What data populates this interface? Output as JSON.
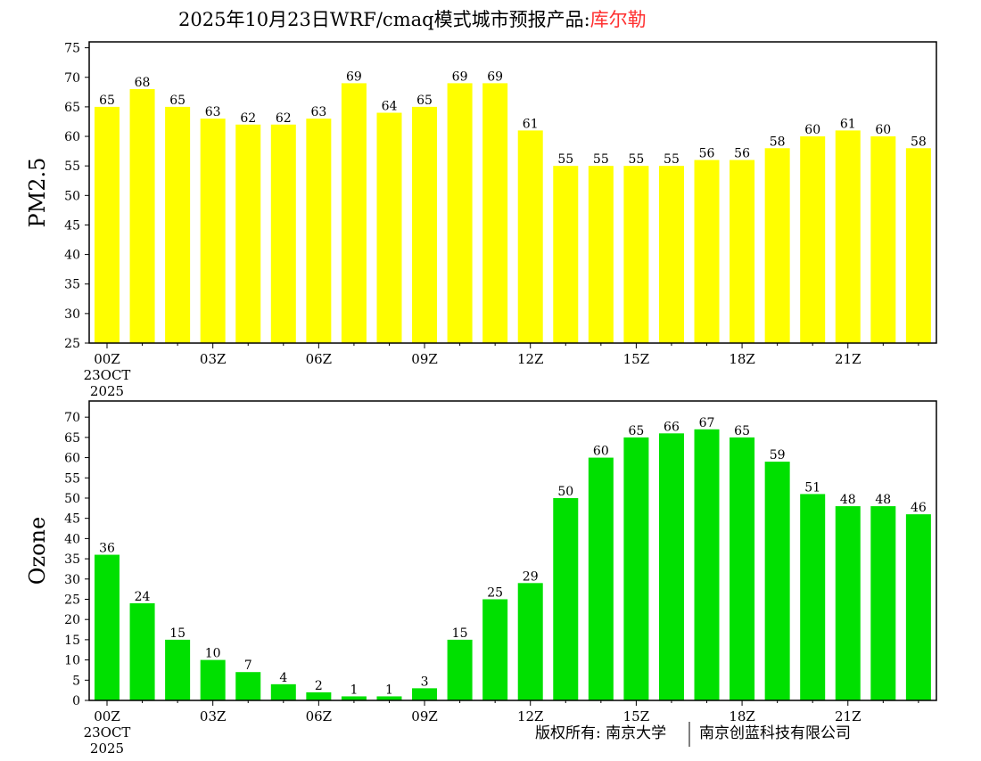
{
  "title": {
    "main": "2025年10月23日WRF/cmaq模式城市预报产品:",
    "city": "库尔勒"
  },
  "colors": {
    "pm25": "#ffff00",
    "ozone": "#00e000",
    "city": "#ff3030"
  },
  "footer": {
    "copyright": "版权所有: 南京大学",
    "company": "南京创蓝科技有限公司"
  },
  "chart_data": [
    {
      "type": "bar",
      "ylabel": "PM2.5",
      "ylim": [
        25,
        76
      ],
      "yticks": [
        25,
        30,
        35,
        40,
        45,
        50,
        55,
        60,
        65,
        70,
        75
      ],
      "x": [
        "00Z",
        "01Z",
        "02Z",
        "03Z",
        "04Z",
        "05Z",
        "06Z",
        "07Z",
        "08Z",
        "09Z",
        "10Z",
        "11Z",
        "12Z",
        "13Z",
        "14Z",
        "15Z",
        "16Z",
        "17Z",
        "18Z",
        "19Z",
        "20Z",
        "21Z",
        "22Z",
        "23Z"
      ],
      "xticklabels": [
        "00Z",
        "03Z",
        "06Z",
        "09Z",
        "12Z",
        "15Z",
        "18Z",
        "21Z"
      ],
      "date_label": [
        "23OCT",
        "2025"
      ],
      "values": [
        65,
        68,
        65,
        63,
        62,
        62,
        63,
        69,
        64,
        65,
        69,
        69,
        61,
        55,
        55,
        55,
        55,
        56,
        56,
        58,
        60,
        61,
        60,
        58
      ]
    },
    {
      "type": "bar",
      "ylabel": "Ozone",
      "ylim": [
        0,
        74
      ],
      "yticks": [
        0,
        5,
        10,
        15,
        20,
        25,
        30,
        35,
        40,
        45,
        50,
        55,
        60,
        65,
        70
      ],
      "x": [
        "00Z",
        "01Z",
        "02Z",
        "03Z",
        "04Z",
        "05Z",
        "06Z",
        "07Z",
        "08Z",
        "09Z",
        "10Z",
        "11Z",
        "12Z",
        "13Z",
        "14Z",
        "15Z",
        "16Z",
        "17Z",
        "18Z",
        "19Z",
        "20Z",
        "21Z",
        "22Z",
        "23Z"
      ],
      "xticklabels": [
        "00Z",
        "03Z",
        "06Z",
        "09Z",
        "12Z",
        "15Z",
        "18Z",
        "21Z"
      ],
      "date_label": [
        "23OCT",
        "2025"
      ],
      "values": [
        36,
        24,
        15,
        10,
        7,
        4,
        2,
        1,
        1,
        3,
        15,
        25,
        29,
        50,
        60,
        65,
        66,
        67,
        65,
        59,
        51,
        48,
        48,
        46
      ]
    }
  ]
}
